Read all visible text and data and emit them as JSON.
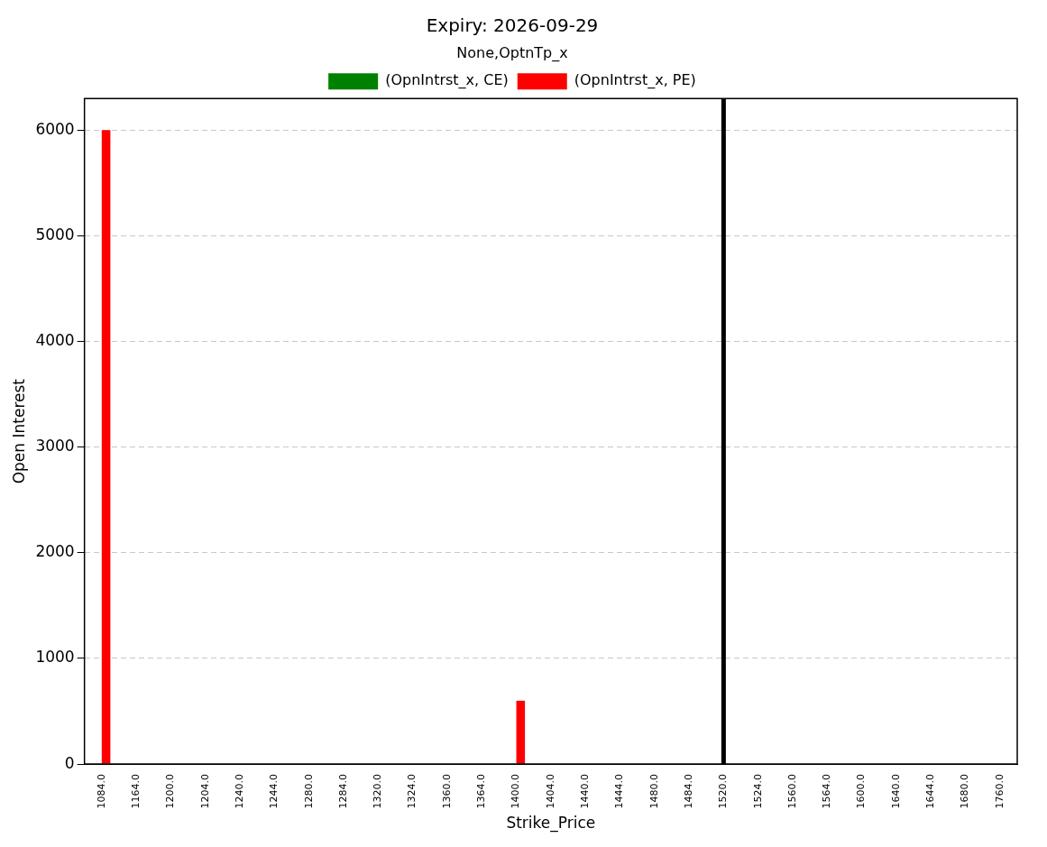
{
  "chart_data": {
    "type": "bar",
    "title": "Expiry: 2026-09-29",
    "xlabel": "Strike_Price",
    "ylabel": "Open Interest",
    "legend_title": "None,OptnTp_x",
    "categories": [
      "1084.0",
      "1164.0",
      "1200.0",
      "1204.0",
      "1240.0",
      "1244.0",
      "1280.0",
      "1284.0",
      "1320.0",
      "1324.0",
      "1360.0",
      "1364.0",
      "1400.0",
      "1404.0",
      "1440.0",
      "1444.0",
      "1480.0",
      "1484.0",
      "1520.0",
      "1524.0",
      "1560.0",
      "1564.0",
      "1600.0",
      "1640.0",
      "1644.0",
      "1680.0",
      "1760.0"
    ],
    "series": [
      {
        "name": "(OpnIntrst_x, CE)",
        "color": "#008000",
        "values": [
          0,
          0,
          0,
          0,
          0,
          0,
          0,
          0,
          0,
          0,
          0,
          0,
          0,
          0,
          0,
          0,
          0,
          0,
          0,
          0,
          0,
          0,
          0,
          0,
          0,
          0,
          0
        ]
      },
      {
        "name": "(OpnIntrst_x, PE)",
        "color": "#ff0000",
        "values": [
          6000,
          0,
          0,
          0,
          0,
          0,
          0,
          0,
          0,
          0,
          0,
          0,
          600,
          0,
          0,
          0,
          0,
          0,
          0,
          0,
          0,
          0,
          0,
          0,
          0,
          0,
          0
        ]
      }
    ],
    "ylim": [
      0,
      6300
    ],
    "yticks": [
      0,
      1000,
      2000,
      3000,
      4000,
      5000,
      6000
    ],
    "grid": "y",
    "legend": "top",
    "ref_lines": [
      {
        "axis": "x",
        "value": "1520.0",
        "color": "#000000",
        "line_style": "solid"
      }
    ]
  }
}
